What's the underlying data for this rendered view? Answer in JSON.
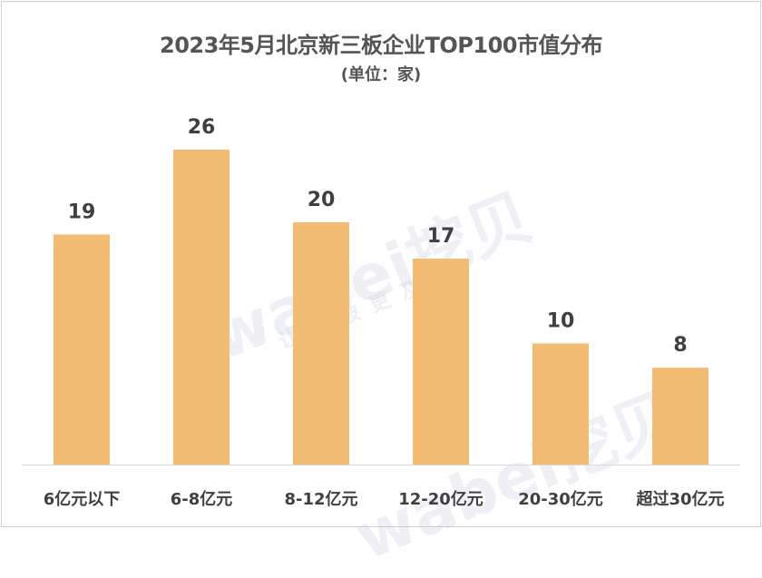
{
  "chart_data": {
    "type": "bar",
    "title": "2023年5月北京新三板企业TOP100市值分布",
    "subtitle": "(单位：家)",
    "categories": [
      "6亿元以下",
      "6-8亿元",
      "8-12亿元",
      "12-20亿元",
      "20-30亿元",
      "超过30亿元"
    ],
    "values": [
      19,
      26,
      20,
      17,
      10,
      8
    ],
    "xlabel": "",
    "ylabel": "",
    "ylim": [
      0,
      30
    ],
    "grid": false,
    "legend": "none",
    "bar_color": "#F2BD73",
    "data_labels": true
  },
  "watermark": {
    "brand": "wabei挖贝",
    "slogan": "让信披更及时"
  }
}
